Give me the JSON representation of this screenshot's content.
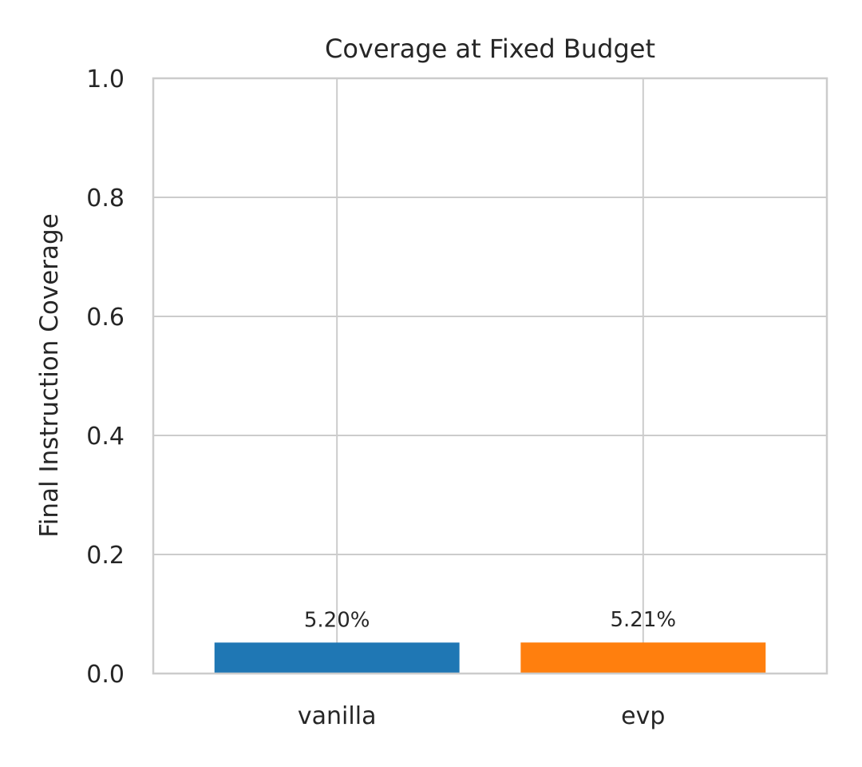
{
  "chart_data": {
    "type": "bar",
    "title": "Coverage at Fixed Budget",
    "xlabel": "",
    "ylabel": "Final Instruction Coverage",
    "categories": [
      "vanilla",
      "evp"
    ],
    "values": [
      0.052,
      0.0521
    ],
    "data_labels": [
      "5.20%",
      "5.21%"
    ],
    "colors": [
      "#1f77b4",
      "#ff7f0e"
    ],
    "ylim": [
      0,
      1.0
    ],
    "yticks": [
      "0.0",
      "0.2",
      "0.4",
      "0.6",
      "0.8",
      "1.0"
    ],
    "grid": true,
    "legend": "none"
  }
}
